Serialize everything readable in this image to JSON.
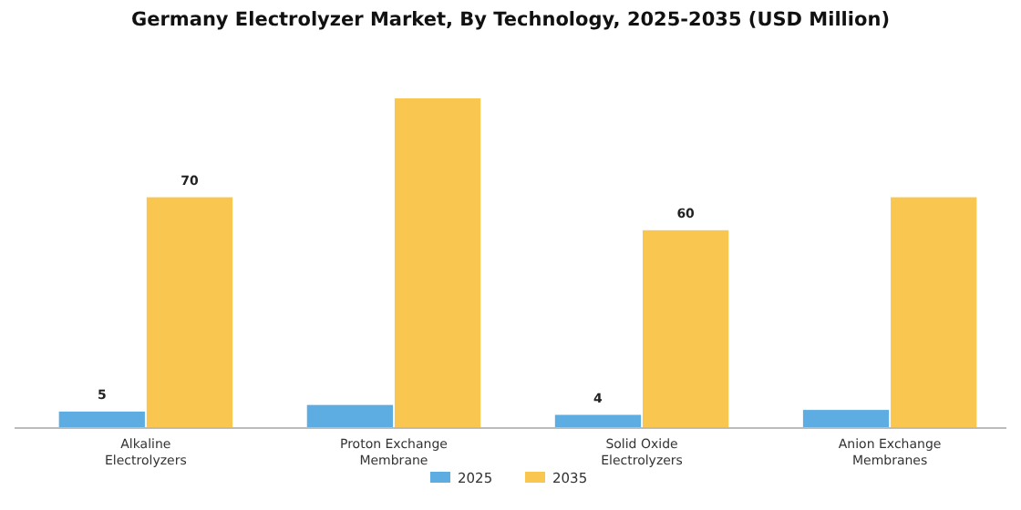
{
  "chart_data": {
    "type": "bar",
    "title": "Germany Electrolyzer Market, By Technology, 2025-2035 (USD Million)",
    "categories": [
      "Alkaline Electrolyzers",
      "Proton Exchange Membrane",
      "Solid Oxide Electrolyzers",
      "Anion Exchange Membranes"
    ],
    "series": [
      {
        "name": "2025",
        "color": "#5dade2",
        "values": [
          5,
          7,
          4,
          5.5
        ],
        "value_labels": [
          "5",
          null,
          "4",
          null
        ]
      },
      {
        "name": "2035",
        "color": "#f9c74f",
        "values": [
          70,
          100,
          60,
          70
        ],
        "value_labels": [
          "70",
          null,
          "60",
          null
        ]
      }
    ],
    "legend": "bottom"
  }
}
